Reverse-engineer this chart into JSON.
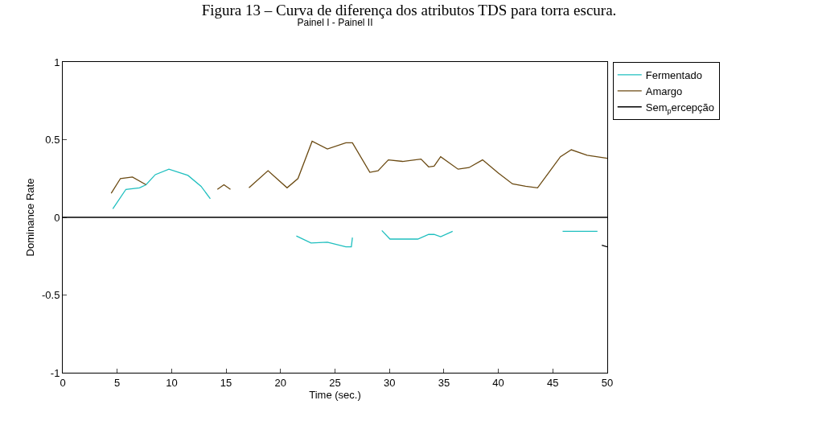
{
  "chart_data": {
    "type": "line",
    "title": "Figura 13 – Curva de diferença dos atributos TDS para torra escura.",
    "subtitle": "Painel I - Painel II",
    "xlabel": "Time (sec.)",
    "ylabel": "Dominance Rate",
    "xlim": [
      0,
      50
    ],
    "xticks": [
      0,
      5,
      10,
      15,
      20,
      25,
      30,
      35,
      40,
      45,
      50
    ],
    "ylim": [
      -1,
      1
    ],
    "yticks": [
      -1,
      -0.5,
      0,
      0.5,
      1
    ],
    "grid": false,
    "legend": "top right",
    "marker": "none",
    "line_style": "solid",
    "ref_lines": [
      {
        "axis": "y",
        "value": 0,
        "color": "#000000"
      }
    ],
    "series": [
      {
        "name": "Fermentado",
        "color": "#1fbfbf",
        "x": [
          4.6,
          5.8,
          7.05,
          7.65,
          8.5,
          9.75,
          11.5,
          12.7,
          13.55,
          17,
          21.45,
          22.8,
          24.3,
          26,
          26.5,
          26.6,
          28,
          29.3,
          30.05,
          32.6,
          33.6,
          34.1,
          34.7,
          35.8,
          40,
          45.9,
          49.1
        ],
        "values": [
          0.055,
          0.18,
          0.19,
          0.21,
          0.275,
          0.31,
          0.27,
          0.2,
          0.12,
          null,
          -0.12,
          -0.165,
          -0.16,
          -0.19,
          -0.19,
          -0.13,
          null,
          -0.085,
          -0.14,
          -0.14,
          -0.11,
          -0.11,
          -0.125,
          -0.09,
          null,
          -0.09,
          -0.09
        ]
      },
      {
        "name": "Amargo",
        "color": "#6b4a12",
        "x": [
          4.45,
          5.3,
          6.4,
          7.65,
          11,
          14.2,
          14.8,
          15.4,
          16.2,
          17.1,
          18.85,
          20.6,
          21.6,
          22.9,
          24.3,
          26,
          26.6,
          28.2,
          28.95,
          29.9,
          31.2,
          32.9,
          33.6,
          34.1,
          34.7,
          36.3,
          37.3,
          38.55,
          40,
          41.3,
          42.5,
          43.6,
          44.7,
          45.7,
          46.7,
          48.15,
          50
        ],
        "values": [
          0.155,
          0.25,
          0.26,
          0.21,
          null,
          0.18,
          0.21,
          0.18,
          null,
          0.19,
          0.3,
          0.19,
          0.25,
          0.49,
          0.44,
          0.48,
          0.48,
          0.29,
          0.3,
          0.37,
          0.36,
          0.375,
          0.325,
          0.33,
          0.39,
          0.31,
          0.32,
          0.37,
          0.285,
          0.215,
          0.2,
          0.19,
          0.295,
          0.39,
          0.435,
          0.4,
          0.38
        ]
      },
      {
        "name": "Sem$_{p}$ercepção",
        "color": "#000000",
        "x": [
          49.5,
          50
        ],
        "values": [
          -0.18,
          -0.19
        ]
      }
    ]
  }
}
